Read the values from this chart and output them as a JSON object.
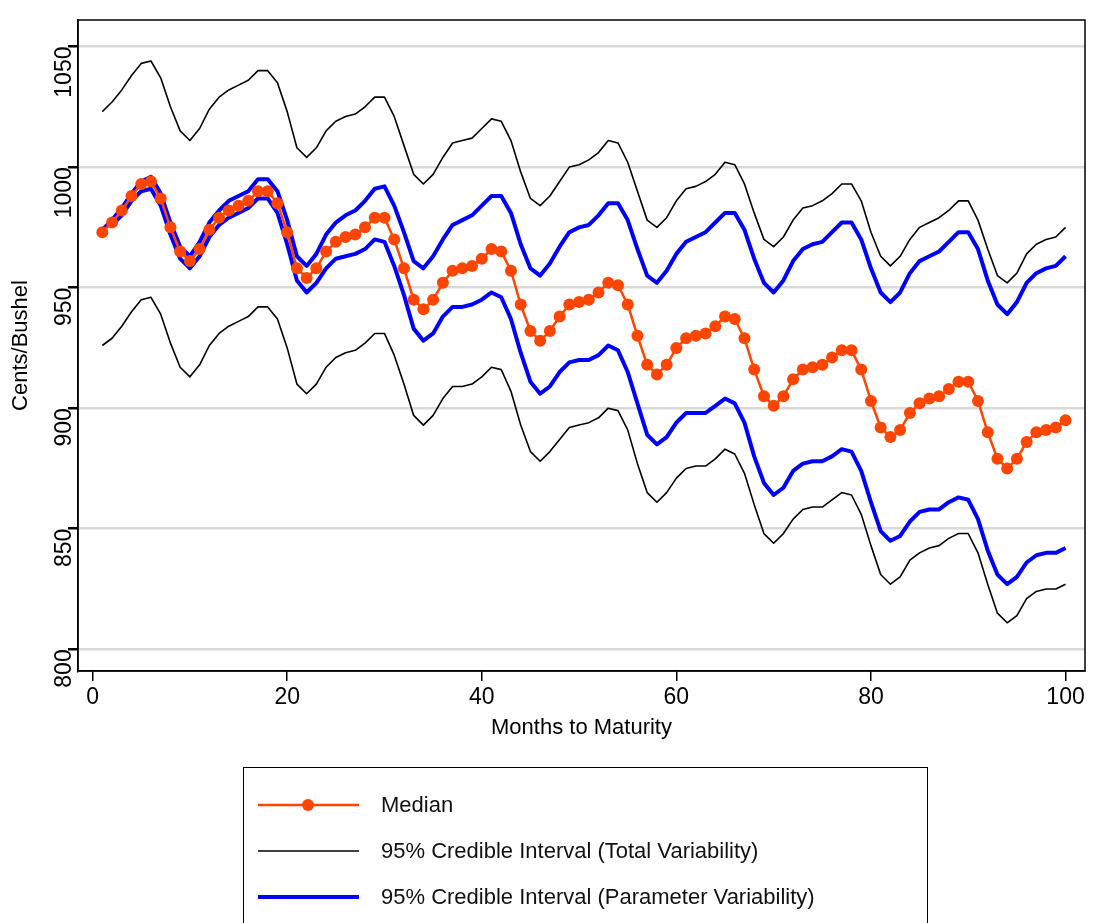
{
  "chart_data": {
    "type": "line",
    "xlabel": "Months to Maturity",
    "ylabel": "Cents/Bushel",
    "x": [
      1,
      2,
      3,
      4,
      5,
      6,
      7,
      8,
      9,
      10,
      11,
      12,
      13,
      14,
      15,
      16,
      17,
      18,
      19,
      20,
      21,
      22,
      23,
      24,
      25,
      26,
      27,
      28,
      29,
      30,
      31,
      32,
      33,
      34,
      35,
      36,
      37,
      38,
      39,
      40,
      41,
      42,
      43,
      44,
      45,
      46,
      47,
      48,
      49,
      50,
      51,
      52,
      53,
      54,
      55,
      56,
      57,
      58,
      59,
      60,
      61,
      62,
      63,
      64,
      65,
      66,
      67,
      68,
      69,
      70,
      71,
      72,
      73,
      74,
      75,
      76,
      77,
      78,
      79,
      80,
      81,
      82,
      83,
      84,
      85,
      86,
      87,
      88,
      89,
      90,
      91,
      92,
      93,
      94,
      95,
      96,
      97,
      98,
      99,
      100
    ],
    "xlim": [
      -1.5,
      102
    ],
    "xticks": [
      0,
      20,
      40,
      60,
      80,
      100
    ],
    "ylim": [
      791,
      1061
    ],
    "yticks": [
      800,
      850,
      900,
      950,
      1000,
      1050
    ],
    "grid": "y",
    "legend": "bottom",
    "line_style": "solid",
    "series": [
      {
        "name": "Median",
        "color": "#ff4500",
        "marker": "circle",
        "values": [
          973,
          977,
          982,
          988,
          993,
          994,
          987,
          975,
          965,
          961,
          966,
          974,
          979,
          982,
          984,
          986,
          990,
          990,
          985,
          973,
          958,
          954,
          958,
          965,
          969,
          971,
          972,
          975,
          979,
          979,
          970,
          958,
          945,
          941,
          945,
          952,
          957,
          958,
          959,
          962,
          966,
          965,
          957,
          943,
          932,
          928,
          932,
          938,
          943,
          944,
          945,
          948,
          952,
          951,
          943,
          930,
          918,
          914,
          918,
          925,
          929,
          930,
          931,
          934,
          938,
          937,
          929,
          916,
          905,
          901,
          905,
          912,
          916,
          917,
          918,
          921,
          924,
          924,
          916,
          903,
          892,
          888,
          891,
          898,
          902,
          904,
          905,
          908,
          911,
          911,
          903,
          890,
          879,
          875,
          879,
          886,
          890,
          891,
          892,
          895
        ]
      },
      {
        "name": "95% Credible Interval (Total Variability)",
        "color": "#000000",
        "marker": "none",
        "values": [
          1023,
          1027,
          1032,
          1038,
          1043,
          1044,
          1037,
          1025,
          1015,
          1011,
          1016,
          1024,
          1029,
          1032,
          1034,
          1036,
          1040,
          1040,
          1035,
          1023,
          1008,
          1004,
          1008,
          1015,
          1019,
          1021,
          1022,
          1025,
          1029,
          1029,
          1021,
          1009,
          997,
          993,
          997,
          1004,
          1010,
          1011,
          1012,
          1016,
          1020,
          1019,
          1011,
          998,
          987,
          984,
          988,
          994,
          1000,
          1001,
          1003,
          1006,
          1011,
          1010,
          1002,
          990,
          978,
          975,
          979,
          986,
          991,
          992,
          994,
          997,
          1002,
          1001,
          993,
          981,
          970,
          967,
          971,
          978,
          983,
          984,
          986,
          989,
          993,
          993,
          986,
          973,
          963,
          959,
          963,
          970,
          975,
          977,
          979,
          982,
          986,
          986,
          978,
          966,
          955,
          952,
          956,
          964,
          968,
          970,
          971,
          975
        ]
      },
      {
        "color": "#000000",
        "marker": "none",
        "values": [
          926,
          929,
          934,
          940,
          945,
          946,
          939,
          927,
          917,
          913,
          918,
          926,
          931,
          934,
          936,
          938,
          942,
          942,
          937,
          925,
          910,
          906,
          910,
          917,
          921,
          923,
          924,
          927,
          931,
          931,
          922,
          910,
          897,
          893,
          897,
          904,
          909,
          909,
          910,
          913,
          917,
          916,
          907,
          893,
          882,
          878,
          882,
          887,
          892,
          893,
          894,
          896,
          900,
          899,
          891,
          877,
          865,
          861,
          865,
          871,
          875,
          876,
          876,
          879,
          883,
          881,
          873,
          860,
          848,
          844,
          848,
          854,
          858,
          859,
          859,
          862,
          865,
          864,
          856,
          843,
          831,
          827,
          830,
          837,
          840,
          842,
          843,
          846,
          848,
          848,
          840,
          827,
          815,
          811,
          814,
          821,
          824,
          825,
          825,
          827
        ]
      },
      {
        "name": "95% Credible Interval (Parameter Variability)",
        "color": "#0000ff",
        "marker": "none",
        "values": [
          974,
          978,
          983,
          989,
          994,
          996,
          989,
          977,
          967,
          963,
          969,
          977,
          982,
          986,
          988,
          990,
          995,
          995,
          990,
          978,
          963,
          959,
          964,
          972,
          977,
          980,
          982,
          986,
          991,
          992,
          984,
          973,
          961,
          958,
          963,
          970,
          976,
          978,
          980,
          984,
          988,
          988,
          981,
          968,
          958,
          955,
          960,
          967,
          973,
          975,
          976,
          980,
          985,
          985,
          978,
          966,
          955,
          952,
          957,
          964,
          969,
          971,
          973,
          977,
          981,
          981,
          974,
          962,
          952,
          948,
          953,
          961,
          966,
          968,
          969,
          973,
          977,
          977,
          970,
          958,
          948,
          944,
          948,
          956,
          961,
          963,
          965,
          969,
          973,
          973,
          966,
          953,
          943,
          939,
          944,
          952,
          956,
          958,
          959,
          963
        ]
      },
      {
        "color": "#0000ff",
        "marker": "none",
        "values": [
          null,
          976,
          980,
          986,
          990,
          991,
          984,
          972,
          962,
          958,
          963,
          971,
          976,
          979,
          981,
          983,
          987,
          987,
          981,
          968,
          953,
          948,
          952,
          958,
          962,
          963,
          964,
          966,
          970,
          969,
          959,
          947,
          933,
          928,
          931,
          938,
          942,
          942,
          943,
          945,
          948,
          946,
          937,
          923,
          911,
          906,
          909,
          915,
          919,
          920,
          920,
          922,
          926,
          924,
          915,
          902,
          889,
          885,
          888,
          894,
          898,
          898,
          898,
          901,
          904,
          902,
          894,
          880,
          869,
          864,
          867,
          874,
          877,
          878,
          878,
          880,
          883,
          882,
          874,
          861,
          849,
          845,
          847,
          853,
          857,
          858,
          858,
          861,
          863,
          862,
          854,
          841,
          831,
          827,
          830,
          836,
          839,
          840,
          840,
          842
        ]
      }
    ]
  }
}
